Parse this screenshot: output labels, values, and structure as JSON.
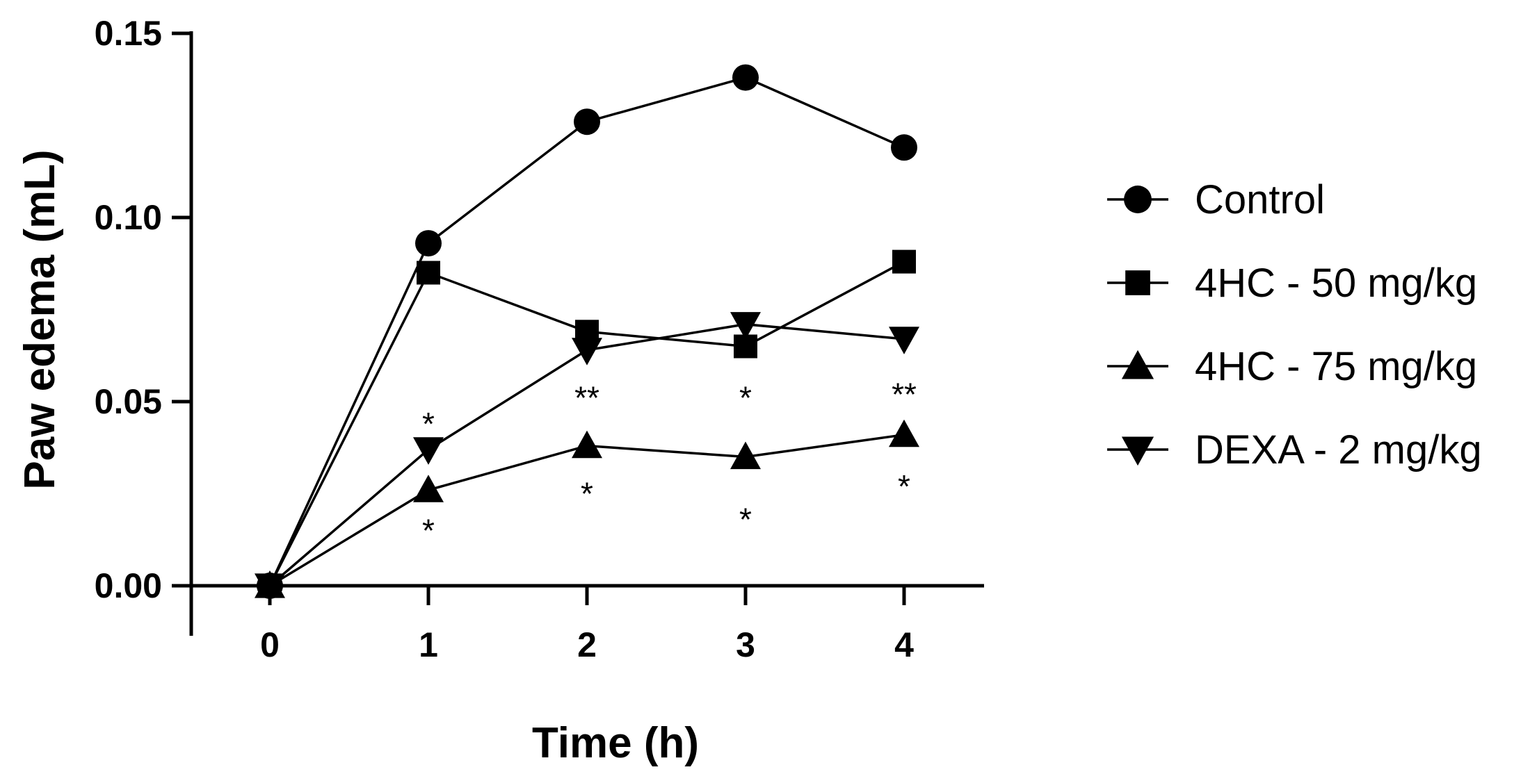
{
  "chart_data": {
    "type": "line",
    "title": "",
    "xlabel": "Time (h)",
    "ylabel": "Paw edema (mL)",
    "x": [
      0,
      1,
      2,
      3,
      4
    ],
    "x_tick_labels": [
      "0",
      "1",
      "2",
      "3",
      "4"
    ],
    "ylim": [
      0,
      0.15
    ],
    "y_ticks": [
      0.0,
      0.05,
      0.1,
      0.15
    ],
    "y_tick_labels": [
      "0.00",
      "0.05",
      "0.10",
      "0.15"
    ],
    "grid": false,
    "legend_position": "right",
    "series": [
      {
        "name": "Control",
        "marker": "circle",
        "values": [
          0.0,
          0.093,
          0.126,
          0.138,
          0.119
        ]
      },
      {
        "name": "4HC - 50 mg/kg",
        "marker": "square",
        "values": [
          0.0,
          0.085,
          0.069,
          0.065,
          0.088
        ]
      },
      {
        "name": "4HC - 75 mg/kg",
        "marker": "triangle-up",
        "values": [
          0.0,
          0.026,
          0.038,
          0.035,
          0.041
        ]
      },
      {
        "name": "DEXA - 2 mg/kg",
        "marker": "triangle-down",
        "values": [
          0.0,
          0.037,
          0.064,
          0.071,
          0.067
        ]
      }
    ],
    "annotations": [
      {
        "text": "*",
        "x": 1,
        "y": 0.044
      },
      {
        "text": "*",
        "x": 1,
        "y": 0.015
      },
      {
        "text": "**",
        "x": 2,
        "y": 0.051
      },
      {
        "text": "*",
        "x": 2,
        "y": 0.025
      },
      {
        "text": "*",
        "x": 3,
        "y": 0.051
      },
      {
        "text": "*",
        "x": 3,
        "y": 0.018
      },
      {
        "text": "**",
        "x": 4,
        "y": 0.052
      },
      {
        "text": "*",
        "x": 4,
        "y": 0.027
      }
    ]
  }
}
